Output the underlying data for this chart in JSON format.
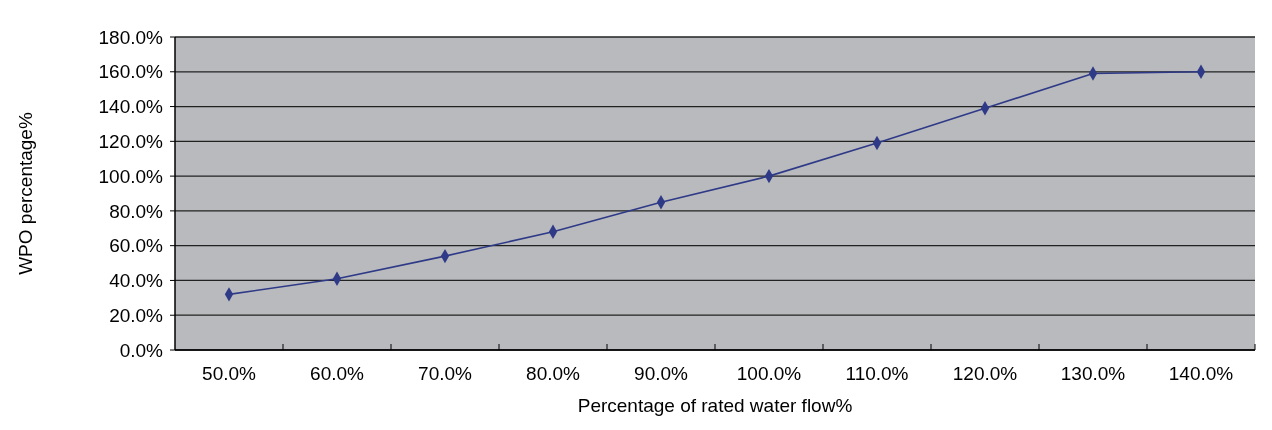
{
  "chart_data": {
    "type": "line",
    "xlabel": "Percentage of rated water flow%",
    "ylabel": "WPO percentage%",
    "categories": [
      "50.0%",
      "60.0%",
      "70.0%",
      "80.0%",
      "90.0%",
      "100.0%",
      "110.0%",
      "120.0%",
      "130.0%",
      "140.0%"
    ],
    "series": [
      {
        "color": "#2e3a87",
        "values": [
          32,
          41,
          54,
          68,
          85,
          100,
          119,
          139,
          159,
          160
        ]
      }
    ],
    "ylim": [
      0,
      180
    ],
    "yticks": [
      {
        "value": 0,
        "label": "0.0%"
      },
      {
        "value": 20,
        "label": "20.0%"
      },
      {
        "value": 40,
        "label": "40.0%"
      },
      {
        "value": 60,
        "label": "60.0%"
      },
      {
        "value": 80,
        "label": "80.0%"
      },
      {
        "value": 100,
        "label": "100.0%"
      },
      {
        "value": 120,
        "label": "120.0%"
      },
      {
        "value": 140,
        "label": "140.0%"
      },
      {
        "value": 160,
        "label": "160.0%"
      },
      {
        "value": 180,
        "label": "180.0%"
      }
    ],
    "grid": "y",
    "marker": "diamond",
    "line_style": "solid"
  }
}
